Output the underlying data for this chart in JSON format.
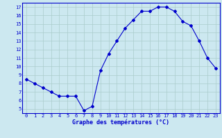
{
  "hours": [
    0,
    1,
    2,
    3,
    4,
    5,
    6,
    7,
    8,
    9,
    10,
    11,
    12,
    13,
    14,
    15,
    16,
    17,
    18,
    19,
    20,
    21,
    22,
    23
  ],
  "temps": [
    8.5,
    8.0,
    7.5,
    7.0,
    6.5,
    6.5,
    6.5,
    4.8,
    5.3,
    9.5,
    11.5,
    13.0,
    14.5,
    15.5,
    16.5,
    16.5,
    17.0,
    17.0,
    16.5,
    15.3,
    14.8,
    13.0,
    11.0,
    9.8
  ],
  "line_color": "#0000cc",
  "marker": "D",
  "marker_size": 2.0,
  "bg_color": "#cce8f0",
  "grid_color": "#aacccc",
  "xlabel": "Graphe des températures (°C)",
  "xlabel_color": "#0000cc",
  "tick_color": "#0000cc",
  "ylim": [
    4.5,
    17.5
  ],
  "yticks": [
    5,
    6,
    7,
    8,
    9,
    10,
    11,
    12,
    13,
    14,
    15,
    16,
    17
  ],
  "xlim": [
    -0.5,
    23.5
  ],
  "tick_fontsize": 5.0,
  "xlabel_fontsize": 6.0,
  "spine_color": "#0000cc"
}
